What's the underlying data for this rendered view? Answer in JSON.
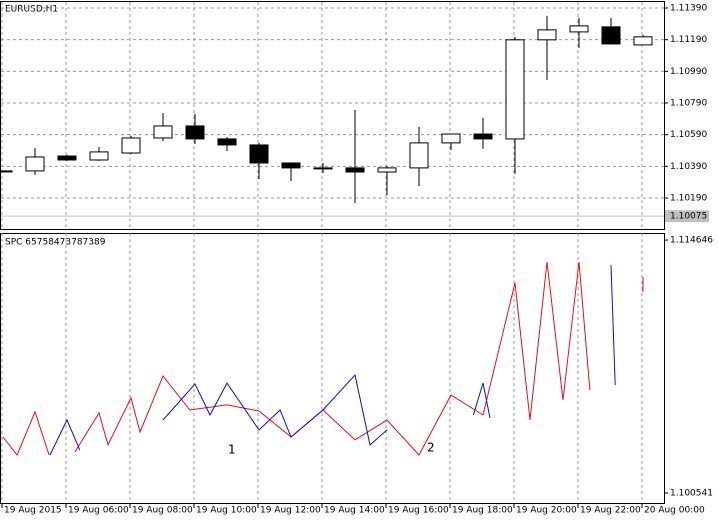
{
  "chart_data": [
    {
      "type": "candlestick",
      "title": "EURUSD,H1",
      "categories": [
        "19 Aug 2015",
        null,
        "19 Aug 06:00",
        null,
        "19 Aug 08:00",
        null,
        "19 Aug 10:00",
        null,
        "19 Aug 12:00",
        null,
        "19 Aug 14:00",
        null,
        "19 Aug 16:00",
        null,
        "19 Aug 18:00",
        null,
        "19 Aug 20:00",
        null,
        "19 Aug 22:00",
        null,
        "20 Aug 00:00"
      ],
      "open": [
        1.10361,
        1.10361,
        1.10455,
        1.1043,
        1.10474,
        1.10569,
        1.10645,
        1.10563,
        1.10525,
        1.10411,
        1.1038,
        1.1038,
        1.10354,
        1.1038,
        1.10538,
        1.10594,
        1.10563,
        1.11189,
        1.11239,
        1.11271,
        1.11157
      ],
      "high": [
        1.10361,
        1.10506,
        1.10462,
        1.10512,
        1.10582,
        1.10727,
        1.10721,
        1.10575,
        1.10538,
        1.10411,
        1.10411,
        1.10746,
        1.10392,
        1.10639,
        1.10594,
        1.10696,
        1.11208,
        1.1134,
        1.11328,
        1.11328,
        1.11221
      ],
      "low": [
        1.10361,
        1.10335,
        1.10424,
        1.10424,
        1.10468,
        1.1055,
        1.10531,
        1.10487,
        1.1031,
        1.10297,
        1.10348,
        1.10158,
        1.10209,
        1.10266,
        1.10493,
        1.105,
        1.10342,
        1.10936,
        1.11138,
        1.11163,
        1.11157
      ],
      "close": [
        1.10361,
        1.10449,
        1.1043,
        1.10481,
        1.10569,
        1.10645,
        1.10563,
        1.10525,
        1.10411,
        1.1038,
        1.1038,
        1.10354,
        1.1038,
        1.10538,
        1.10594,
        1.10563,
        1.11189,
        1.11252,
        1.11277,
        1.11163,
        1.11208
      ],
      "up_color": "#ffffff",
      "down_color": "#000000",
      "ylim": [
        1.09994,
        1.11428
      ],
      "yticks": [
        {
          "value": 1.1139,
          "label": "1.11390"
        },
        {
          "value": 1.1119,
          "label": "1.11190"
        },
        {
          "value": 1.1099,
          "label": "1.10990"
        },
        {
          "value": 1.1079,
          "label": "1.10790"
        },
        {
          "value": 1.1059,
          "label": "1.10590"
        },
        {
          "value": 1.1039,
          "label": "1.10390"
        },
        {
          "value": 1.1019,
          "label": "1.10190"
        }
      ],
      "current_price": 1.10075,
      "grid": true
    },
    {
      "type": "line",
      "title": "SPC 65758473787389",
      "series": [
        {
          "name": "",
          "color": "#e0101e",
          "x": [
            0,
            0.44,
            1,
            1.44,
            2,
            2.25,
            3,
            3.28,
            4,
            4.28,
            5,
            5.84,
            7,
            8,
            9,
            10,
            11,
            12,
            13,
            14,
            15,
            16,
            16.47,
            17,
            17.5,
            18,
            18.34,
            19,
            20,
            20
          ],
          "values": [
            1.10366,
            1.10266,
            1.10506,
            1.10266,
            null,
            1.10283,
            1.105,
            1.10322,
            1.10584,
            1.10394,
            1.10706,
            1.10517,
            1.10545,
            1.10511,
            1.10366,
            1.10517,
            1.1035,
            1.10461,
            1.10266,
            1.106,
            1.10489,
            1.11225,
            1.10461,
            1.11342,
            1.10573,
            1.11342,
            1.10628,
            null,
            1.11258,
            1.11175
          ]
        },
        {
          "name": "",
          "color": "#1010c0",
          "x": [
            1.47,
            2,
            2.4,
            3,
            5,
            6,
            6.47,
            7,
            8,
            8.66,
            9,
            10,
            11,
            11.47,
            12,
            13,
            14.7,
            15,
            15.22,
            16,
            19,
            19.13
          ],
          "values": [
            1.10266,
            1.10461,
            1.10294,
            null,
            1.10461,
            1.10662,
            1.10489,
            1.10667,
            1.10405,
            1.10517,
            1.10366,
            1.10517,
            1.10712,
            1.10322,
            1.10405,
            null,
            1.10489,
            1.10667,
            1.10472,
            null,
            1.11325,
            1.10656
          ]
        }
      ],
      "annotations": [
        {
          "text": "1",
          "color": "#4060c0"
        },
        {
          "text": "2",
          "color": "#d02030"
        }
      ],
      "ylim": [
        1.09998,
        1.11504
      ],
      "yticks": [
        1.114646,
        1.100541
      ]
    }
  ]
}
